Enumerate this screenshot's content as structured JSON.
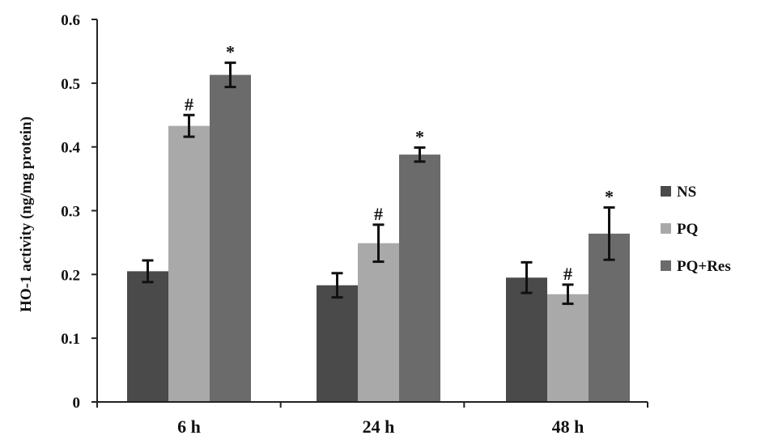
{
  "chart_data": {
    "type": "bar",
    "title": "",
    "xlabel": "",
    "ylabel": "HO-1 activity (ng/mg protein)",
    "ylim": [
      0,
      0.6
    ],
    "yticks": [
      "0",
      "0.1",
      "0.2",
      "0.3",
      "0.4",
      "0.5",
      "0.6"
    ],
    "grid": false,
    "legend_position": "right",
    "categories": [
      "6 h",
      "24 h",
      "48 h"
    ],
    "series": [
      {
        "name": "NS",
        "color": "#4a4a4a",
        "values": [
          0.205,
          0.183,
          0.195
        ],
        "errors": [
          0.017,
          0.019,
          0.024
        ],
        "markers": [
          "",
          "",
          ""
        ]
      },
      {
        "name": "PQ",
        "color": "#a9a9a9",
        "values": [
          0.433,
          0.249,
          0.169
        ],
        "errors": [
          0.017,
          0.029,
          0.015
        ],
        "markers": [
          "#",
          "#",
          "#"
        ]
      },
      {
        "name": "PQ+Res",
        "color": "#6b6b6b",
        "values": [
          0.513,
          0.388,
          0.264
        ],
        "errors": [
          0.019,
          0.011,
          0.041
        ],
        "markers": [
          "*",
          "*",
          "*"
        ]
      }
    ]
  }
}
